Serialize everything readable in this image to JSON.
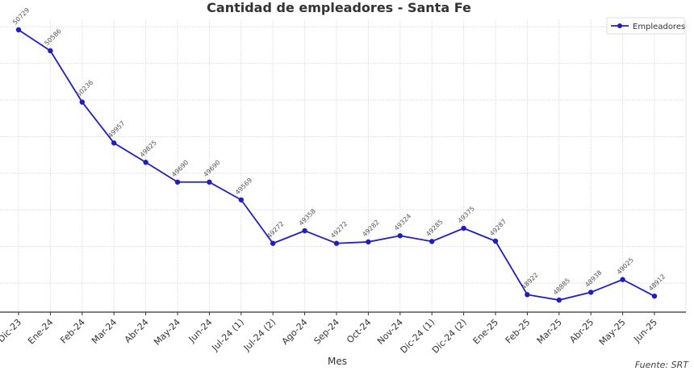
{
  "chart_data": {
    "type": "line",
    "title": "Cantidad de empleadores - Santa Fe",
    "xlabel": "Mes",
    "ylabel": "",
    "source": "Fuente: SRT",
    "categories": [
      "Dic-23",
      "Ene-24",
      "Feb-24",
      "Mar-24",
      "Abr-24",
      "May-24",
      "Jun-24",
      "Jul-24 (1)",
      "Jul-24 (2)",
      "Ago-24",
      "Sep-24",
      "Oct-24",
      "Nov-24",
      "Dic-24 (1)",
      "Dic-24 (2)",
      "Ene-25",
      "Feb-25",
      "Mar-25",
      "Abr-25",
      "May-25",
      "Jun-25"
    ],
    "series": [
      {
        "name": "Empleadores",
        "color": "#1f1fbf",
        "marker": "circle",
        "values": [
          50729,
          50586,
          50236,
          49957,
          49825,
          49690,
          49690,
          49569,
          49272,
          49358,
          49272,
          49282,
          49324,
          49285,
          49375,
          49287,
          48922,
          48885,
          48938,
          49025,
          48912
        ]
      }
    ],
    "ylim": [
      48800,
      50780
    ],
    "y_gridlines": [
      49000,
      49250,
      49500,
      49750,
      50000,
      50250,
      50500,
      50750
    ],
    "y_tick_labels_visible": false,
    "grid": true,
    "legend_position": "upper right",
    "data_labels": true
  }
}
